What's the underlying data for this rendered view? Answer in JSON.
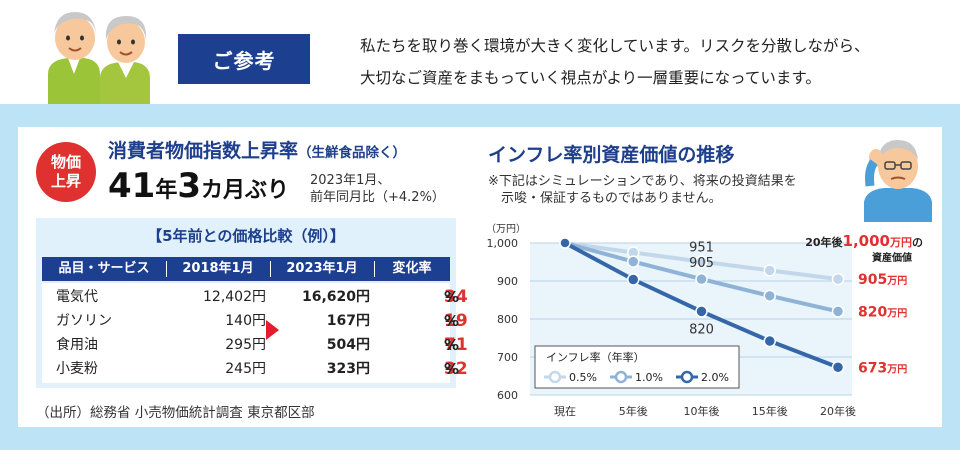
{
  "header": {
    "badge": "ご参考",
    "intro_lines": [
      "私たちを取り巻く環境が大きく変化しています。リスクを分散しながら、",
      "大切なご資産をまもっていく視点がより一層重要になっています。"
    ]
  },
  "cpi": {
    "badge_line1": "物価",
    "badge_line2": "上昇",
    "title": "消費者物価指数上昇率",
    "title_note": "（生鮮食品除く）",
    "big_num1": "41",
    "big_unit1": "年",
    "big_num2": "3",
    "big_unit2": "カ月ぶり",
    "note_line1": "2023年1月、",
    "note_line2": "前年同月比（+4.2%）"
  },
  "comparison": {
    "title": "【5年前との価格比較（例）】",
    "columns": [
      "品目・サービス",
      "2018年1月",
      "2023年1月",
      "変化率"
    ],
    "rows": [
      {
        "item": "電気代",
        "v2018": "12,402円",
        "v2023": "16,620円",
        "sign": "+",
        "digits": "34",
        "pct": "%"
      },
      {
        "item": "ガソリン",
        "v2018": "140円",
        "v2023": "167円",
        "sign": "+",
        "digits": "19",
        "pct": "%"
      },
      {
        "item": "食用油",
        "v2018": "295円",
        "v2023": "504円",
        "sign": "+",
        "digits": "71",
        "pct": "%"
      },
      {
        "item": "小麦粉",
        "v2018": "245円",
        "v2023": "323円",
        "sign": "+",
        "digits": "32",
        "pct": "%"
      }
    ],
    "source": "（出所）総務省 小売物価統計調査 東京都区部"
  },
  "inflation": {
    "title": "インフレ率別資産価値の推移",
    "note_line1": "※下記はシミュレーションであり、将来の投資結果を",
    "note_line2": "示唆・保証するものではありません。"
  },
  "chart_data": {
    "type": "line",
    "ylabel": "（万円）",
    "ylim": [
      600,
      1000
    ],
    "yticks": [
      600,
      700,
      800,
      900,
      1000
    ],
    "ytick_labels": [
      "600",
      "700",
      "800",
      "900",
      "1,000"
    ],
    "categories": [
      "現在",
      "5年後",
      "10年後",
      "15年後",
      "20年後"
    ],
    "legend_title": "インフレ率（年率）",
    "series": [
      {
        "name": "0.5%",
        "color": "#c3d7eb",
        "values": [
          1000,
          975,
          951,
          928,
          905
        ]
      },
      {
        "name": "1.0%",
        "color": "#8fb2d7",
        "values": [
          1000,
          951,
          905,
          861,
          820
        ]
      },
      {
        "name": "2.0%",
        "color": "#3566a8",
        "values": [
          1000,
          904,
          820,
          742,
          673
        ]
      }
    ],
    "point_labels": [
      {
        "series": 0,
        "index": 2,
        "text": "951"
      },
      {
        "series": 1,
        "index": 2,
        "text": "905"
      },
      {
        "series": 2,
        "index": 2,
        "text": "820"
      }
    ],
    "end_labels": [
      {
        "series": 0,
        "num": "905",
        "unit": "万円"
      },
      {
        "series": 1,
        "num": "820",
        "unit": "万円"
      },
      {
        "series": 2,
        "num": "673",
        "unit": "万円"
      }
    ],
    "callout": {
      "prefix": "20年後",
      "num": "1,000",
      "unit": "万円",
      "suffix": "の",
      "line2": "資産価値"
    },
    "accent": "#e03131",
    "plot_bg": "#e9f4fb"
  }
}
